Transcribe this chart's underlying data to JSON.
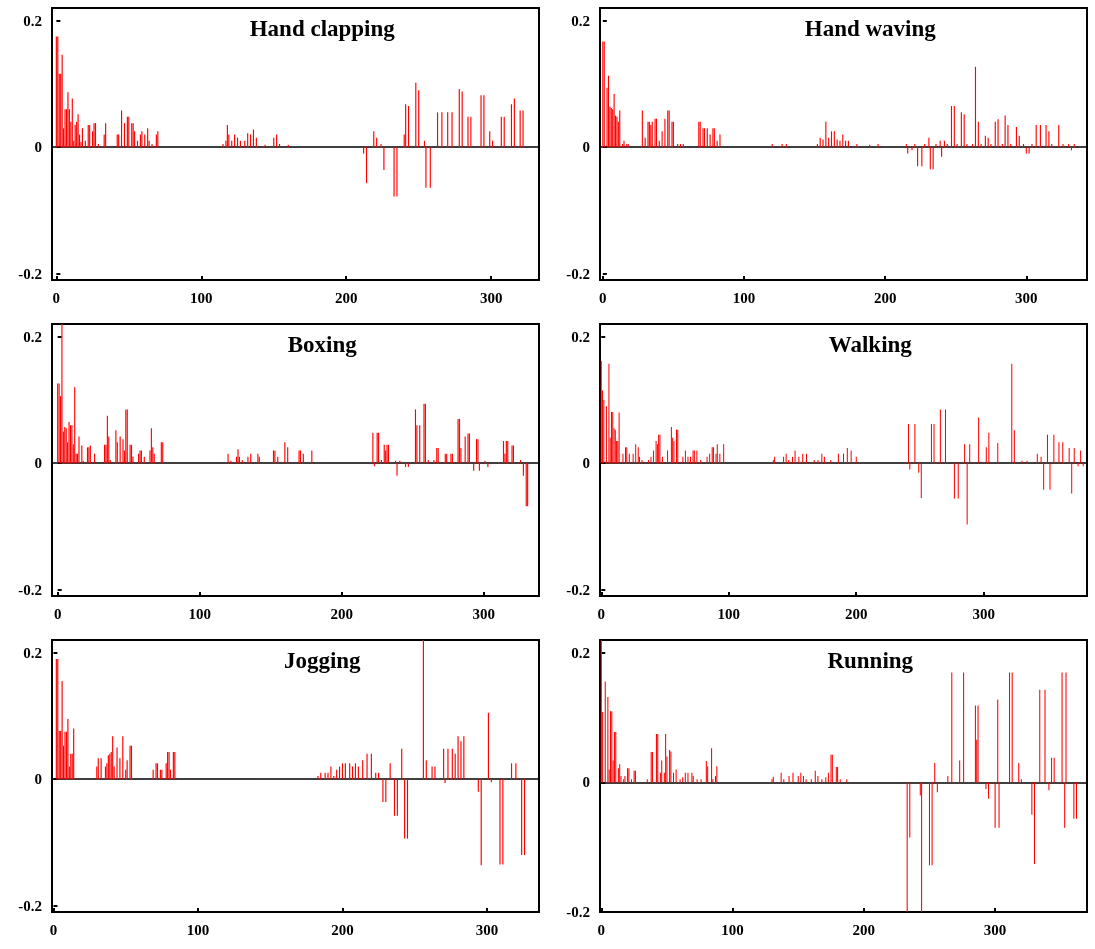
{
  "chart_data": [
    {
      "type": "bar",
      "title": "Hand clapping",
      "color": "#ff0000",
      "xlim": [
        -3,
        333
      ],
      "xticks": [
        0,
        100,
        200,
        300
      ],
      "ylim": [
        -0.21,
        0.22
      ],
      "yticks": [
        -0.2,
        0,
        0.2
      ],
      "x": [
        0,
        1,
        2,
        3,
        4,
        5,
        6,
        7,
        8,
        9,
        10,
        11,
        12,
        13,
        14,
        15,
        16,
        17,
        18,
        20,
        22,
        23,
        25,
        26,
        27,
        29,
        33,
        34,
        42,
        43,
        45,
        47,
        49,
        50,
        52,
        53,
        54,
        56,
        58,
        59,
        61,
        63,
        64,
        66,
        69,
        70,
        115,
        117,
        118,
        119,
        121,
        123,
        125,
        127,
        130,
        132,
        134,
        136,
        138,
        144,
        150,
        152,
        154,
        160,
        212,
        214,
        219,
        221,
        224,
        226,
        233,
        235,
        240,
        241,
        243,
        248,
        250,
        254,
        255,
        258,
        263,
        266,
        270,
        273,
        278,
        280,
        284,
        286,
        293,
        295,
        299,
        301,
        307,
        309,
        314,
        316,
        320,
        322
      ],
      "values": [
        0.175,
        0.175,
        0.116,
        0.116,
        0.146,
        0.03,
        0.06,
        0.06,
        0.087,
        0.06,
        0.04,
        0.077,
        0.01,
        0.035,
        0.04,
        0.052,
        0.02,
        0.008,
        0.03,
        0.01,
        0.035,
        0.035,
        0.025,
        0.038,
        0.038,
        0.005,
        0.02,
        0.038,
        0.02,
        0.02,
        0.058,
        0.038,
        0.048,
        0.048,
        0.038,
        0.038,
        0.025,
        0.01,
        0.02,
        0.025,
        0.02,
        0.03,
        0.01,
        0.005,
        0.02,
        0.025,
        0.005,
        0.01,
        0.035,
        0.02,
        0.01,
        0.02,
        0.015,
        0.01,
        0.01,
        0.022,
        0.02,
        0.028,
        0.015,
        0.004,
        0.015,
        0.02,
        0.005,
        0.004,
        -0.01,
        -0.057,
        0.025,
        0.015,
        0.005,
        -0.036,
        -0.078,
        -0.078,
        0.02,
        0.068,
        0.065,
        0.102,
        0.09,
        0.01,
        -0.064,
        -0.064,
        0.055,
        0.055,
        0.055,
        0.055,
        0.092,
        0.088,
        0.048,
        0.048,
        0.082,
        0.082,
        0.025,
        0.01,
        0.048,
        0.048,
        0.068,
        0.077,
        0.058,
        0.058
      ]
    },
    {
      "type": "bar",
      "title": "Hand waving",
      "color": "#ff0000",
      "xlim": [
        -2,
        343
      ],
      "xticks": [
        0,
        100,
        200,
        300
      ],
      "ylim": [
        -0.21,
        0.22
      ],
      "yticks": [
        -0.2,
        0,
        0.2
      ],
      "x": [
        0,
        1,
        3,
        4,
        5,
        6,
        7,
        8,
        9,
        10,
        11,
        12,
        14,
        15,
        17,
        18,
        28,
        30,
        32,
        33,
        34,
        35,
        37,
        38,
        40,
        42,
        44,
        46,
        47,
        49,
        50,
        53,
        55,
        57,
        68,
        69,
        71,
        72,
        74,
        76,
        78,
        79,
        81,
        83,
        120,
        127,
        130,
        152,
        154,
        156,
        158,
        160,
        162,
        164,
        166,
        168,
        170,
        172,
        174,
        180,
        189,
        195,
        215,
        216,
        219,
        221,
        223,
        226,
        228,
        231,
        232,
        234,
        236,
        239,
        240,
        242,
        244,
        247,
        249,
        251,
        254,
        256,
        258,
        262,
        264,
        266,
        268,
        271,
        273,
        275,
        278,
        280,
        283,
        285,
        287,
        289,
        293,
        295,
        298,
        300,
        302,
        304,
        307,
        310,
        314,
        316,
        318,
        323,
        326,
        330,
        332,
        334
      ],
      "values": [
        0.167,
        0.167,
        0.094,
        0.113,
        0.064,
        0.062,
        0.06,
        0.084,
        0.05,
        0.048,
        0.04,
        0.058,
        0.005,
        0.01,
        0.005,
        0.005,
        0.058,
        0.015,
        0.04,
        0.04,
        0.035,
        0.04,
        0.045,
        0.045,
        0.01,
        0.025,
        0.045,
        0.058,
        0.058,
        0.04,
        0.04,
        0.005,
        0.005,
        0.005,
        0.04,
        0.04,
        0.03,
        0.03,
        0.03,
        0.02,
        0.03,
        0.03,
        0.01,
        0.02,
        0.005,
        0.005,
        0.005,
        0.005,
        0.015,
        0.012,
        0.04,
        0.015,
        0.025,
        0.025,
        0.012,
        0.01,
        0.02,
        0.01,
        0.01,
        0.005,
        0.004,
        0.005,
        0.005,
        -0.01,
        -0.005,
        0.005,
        -0.03,
        -0.03,
        0.005,
        0.015,
        -0.035,
        -0.035,
        0.005,
        0.01,
        -0.015,
        0.01,
        0.005,
        0.065,
        0.065,
        0.005,
        0.055,
        0.052,
        0.005,
        0.005,
        0.127,
        0.04,
        0.005,
        0.018,
        0.015,
        0.005,
        0.04,
        0.044,
        0.005,
        0.05,
        0.035,
        0.005,
        0.032,
        0.018,
        0.005,
        -0.01,
        -0.01,
        0.005,
        0.035,
        0.035,
        0.035,
        0.025,
        0.005,
        0.035,
        0.005,
        0.005,
        -0.005,
        0.005
      ]
    },
    {
      "type": "bar",
      "title": "Boxing",
      "color": "#ff0000",
      "xlim": [
        -4,
        339
      ],
      "xticks": [
        0,
        100,
        200,
        300
      ],
      "ylim": [
        -0.21,
        0.22
      ],
      "yticks": [
        -0.2,
        0,
        0.2
      ],
      "x": [
        0,
        1,
        2,
        3,
        4,
        5,
        6,
        7,
        8,
        9,
        10,
        11,
        12,
        13,
        14,
        15,
        17,
        18,
        21,
        22,
        23,
        26,
        33,
        34,
        35,
        36,
        37,
        41,
        42,
        44,
        46,
        47,
        48,
        49,
        51,
        52,
        53,
        57,
        58,
        59,
        61,
        65,
        66,
        67,
        68,
        73,
        74,
        120,
        122,
        126,
        127,
        128,
        130,
        134,
        136,
        141,
        142,
        152,
        153,
        155,
        160,
        162,
        170,
        171,
        173,
        179,
        222,
        223,
        225,
        226,
        228,
        230,
        231,
        232,
        233,
        238,
        239,
        241,
        245,
        247,
        252,
        253,
        255,
        258,
        259,
        261,
        265,
        267,
        268,
        273,
        274,
        277,
        278,
        282,
        283,
        284,
        287,
        289,
        290,
        293,
        295,
        296,
        297,
        301,
        303,
        314,
        315,
        316,
        317,
        320,
        321,
        326,
        328,
        330,
        331
      ],
      "values": [
        0.126,
        0.126,
        0.106,
        0.22,
        0.05,
        0.057,
        0.055,
        0.033,
        0.065,
        0.06,
        0.06,
        0.03,
        0.12,
        0.015,
        0.015,
        0.042,
        0.028,
        0.004,
        0.025,
        0.025,
        0.028,
        0.015,
        0.029,
        0.029,
        0.075,
        0.042,
        0.005,
        0.052,
        0.033,
        0.042,
        0.038,
        0.02,
        0.085,
        0.085,
        0.029,
        0.029,
        0.01,
        0.015,
        0.02,
        0.02,
        0.01,
        0.02,
        0.055,
        0.025,
        0.015,
        0.033,
        0.033,
        0.015,
        0.004,
        0.01,
        0.022,
        0.01,
        0.005,
        0.01,
        0.015,
        0.015,
        0.01,
        0.02,
        0.02,
        0.01,
        0.033,
        0.025,
        0.02,
        0.02,
        0.015,
        0.02,
        0.048,
        -0.005,
        0.048,
        0.048,
        0.005,
        0.029,
        0.02,
        0.029,
        0.029,
        0.004,
        -0.02,
        0.004,
        -0.006,
        -0.006,
        0.085,
        0.06,
        0.06,
        0.094,
        0.094,
        0.005,
        0.005,
        0.024,
        0.024,
        0.015,
        0.015,
        0.015,
        0.015,
        0.07,
        0.07,
        0.024,
        0.042,
        0.047,
        0.047,
        -0.012,
        0.038,
        0.038,
        -0.012,
        0.004,
        -0.006,
        0.035,
        0.015,
        0.035,
        0.035,
        0.028,
        0.028,
        0.005,
        -0.02,
        -0.068,
        -0.068
      ]
    },
    {
      "type": "bar",
      "title": "Walking",
      "color": "#ff0000",
      "xlim": [
        -1,
        381
      ],
      "xticks": [
        0,
        100,
        200,
        300
      ],
      "ylim": [
        -0.21,
        0.22
      ],
      "yticks": [
        -0.2,
        0,
        0.2
      ],
      "x": [
        0,
        1,
        2,
        4,
        6,
        7,
        8,
        9,
        10,
        11,
        12,
        13,
        14,
        17,
        19,
        20,
        22,
        25,
        27,
        29,
        30,
        32,
        37,
        39,
        41,
        43,
        44,
        45,
        46,
        48,
        52,
        55,
        56,
        57,
        59,
        60,
        64,
        66,
        68,
        70,
        72,
        73,
        75,
        78,
        83,
        85,
        87,
        88,
        90,
        91,
        93,
        96,
        135,
        136,
        143,
        145,
        147,
        150,
        152,
        155,
        158,
        161,
        167,
        170,
        173,
        175,
        180,
        186,
        190,
        193,
        196,
        200,
        241,
        242,
        246,
        249,
        251,
        259,
        261,
        266,
        270,
        277,
        280,
        285,
        287,
        289,
        296,
        302,
        304,
        311,
        322,
        324,
        330,
        334,
        342,
        345,
        347,
        350,
        352,
        355,
        359,
        362,
        367,
        369,
        371,
        374,
        376,
        378
      ],
      "values": [
        0.162,
        0.115,
        0.1,
        0.09,
        0.157,
        0.04,
        0.081,
        0.081,
        0.055,
        0.053,
        0.035,
        0.035,
        0.08,
        0.015,
        0.025,
        0.025,
        0.015,
        0.015,
        0.03,
        0.025,
        0.01,
        0.005,
        0.005,
        0.01,
        0.02,
        0.035,
        0.03,
        0.045,
        0.045,
        0.01,
        0.02,
        0.057,
        0.04,
        0.035,
        0.053,
        0.053,
        0.01,
        0.02,
        0.01,
        0.01,
        0.02,
        0.02,
        0.02,
        0.005,
        0.01,
        0.015,
        0.025,
        0.025,
        0.015,
        0.03,
        0.015,
        0.03,
        0.005,
        0.01,
        0.01,
        0.015,
        0.005,
        0.01,
        0.02,
        0.01,
        0.015,
        0.015,
        0.005,
        0.005,
        0.015,
        0.01,
        0.005,
        0.015,
        0.015,
        0.024,
        0.02,
        0.01,
        0.062,
        -0.01,
        0.062,
        -0.015,
        -0.055,
        0.062,
        0.062,
        0.085,
        0.085,
        -0.056,
        -0.056,
        0.03,
        -0.097,
        0.03,
        0.072,
        0.025,
        0.048,
        0.032,
        0.157,
        0.052,
        0.004,
        0.004,
        0.015,
        0.01,
        -0.042,
        0.045,
        -0.042,
        0.045,
        0.033,
        0.033,
        0.024,
        -0.048,
        0.024,
        -0.005,
        0.02,
        -0.005
      ]
    },
    {
      "type": "bar",
      "title": "Jogging",
      "color": "#ff0000",
      "xlim": [
        -1,
        336
      ],
      "xticks": [
        0,
        100,
        200,
        300
      ],
      "ylim": [
        -0.21,
        0.22
      ],
      "yticks": [
        -0.2,
        0,
        0.2
      ],
      "x": [
        2,
        3,
        4,
        5,
        6,
        7,
        8,
        9,
        10,
        11,
        12,
        13,
        14,
        30,
        31,
        33,
        36,
        37,
        38,
        39,
        40,
        41,
        42,
        44,
        46,
        48,
        50,
        51,
        53,
        54,
        69,
        71,
        72,
        74,
        75,
        78,
        79,
        80,
        81,
        83,
        84,
        183,
        185,
        188,
        190,
        192,
        194,
        196,
        198,
        200,
        202,
        205,
        207,
        209,
        211,
        214,
        217,
        220,
        223,
        225,
        228,
        230,
        233,
        236,
        238,
        241,
        243,
        245,
        256,
        258,
        262,
        264,
        270,
        271,
        273,
        276,
        278,
        280,
        282,
        284,
        294,
        296,
        301,
        303,
        309,
        311,
        317,
        320,
        324,
        326
      ],
      "values": [
        0.19,
        0.19,
        0.076,
        0.076,
        0.155,
        0.053,
        0.075,
        0.075,
        0.095,
        0.02,
        0.04,
        0.04,
        0.08,
        0.02,
        0.033,
        0.033,
        0.02,
        0.025,
        0.038,
        0.04,
        0.043,
        0.068,
        0.02,
        0.05,
        0.033,
        0.068,
        0.015,
        0.03,
        0.053,
        0.053,
        0.015,
        0.025,
        0.025,
        0.015,
        0.015,
        0.025,
        0.043,
        0.043,
        0.015,
        0.043,
        0.043,
        0.005,
        0.01,
        0.01,
        0.01,
        0.02,
        0.005,
        0.015,
        0.02,
        0.025,
        0.025,
        0.025,
        0.02,
        0.025,
        0.02,
        0.03,
        0.04,
        0.04,
        0.01,
        0.01,
        -0.036,
        -0.036,
        0.025,
        -0.058,
        -0.058,
        0.048,
        -0.094,
        -0.094,
        0.22,
        0.03,
        0.02,
        0.02,
        0.048,
        -0.006,
        0.048,
        0.048,
        0.04,
        0.068,
        0.06,
        0.068,
        -0.02,
        -0.136,
        0.105,
        -0.005,
        -0.135,
        -0.135,
        0.025,
        0.025,
        -0.12,
        -0.12
      ]
    },
    {
      "type": "bar",
      "title": "Running",
      "color": "#ff0000",
      "xlim": [
        -1,
        370
      ],
      "xticks": [
        0,
        100,
        200,
        300
      ],
      "ylim": [
        -0.2,
        0.22
      ],
      "yticks": [
        -0.2,
        0,
        0.2
      ],
      "x": [
        0,
        1,
        3,
        5,
        6,
        7,
        8,
        9,
        10,
        11,
        13,
        14,
        15,
        17,
        18,
        20,
        21,
        23,
        25,
        26,
        35,
        38,
        39,
        42,
        43,
        45,
        46,
        48,
        49,
        50,
        52,
        53,
        55,
        57,
        60,
        62,
        64,
        66,
        69,
        70,
        73,
        76,
        80,
        81,
        84,
        85,
        87,
        88,
        130,
        131,
        137,
        139,
        143,
        146,
        150,
        152,
        154,
        156,
        160,
        163,
        165,
        168,
        171,
        173,
        175,
        176,
        179,
        180,
        182,
        187,
        233,
        235,
        243,
        244,
        250,
        252,
        254,
        256,
        264,
        267,
        273,
        276,
        285,
        286,
        287,
        293,
        295,
        300,
        302,
        303,
        311,
        313,
        318,
        320,
        328,
        330,
        334,
        338,
        341,
        343,
        345,
        351,
        353,
        354,
        360,
        362
      ],
      "values": [
        0.22,
        0.109,
        0.156,
        0.132,
        0.02,
        0.11,
        0.11,
        0.034,
        0.078,
        0.078,
        0.022,
        0.028,
        0.01,
        0.005,
        0.01,
        0.022,
        0.022,
        0.005,
        0.018,
        0.018,
        0.005,
        0.047,
        0.047,
        0.075,
        0.075,
        0.015,
        0.034,
        0.015,
        0.075,
        0.04,
        0.05,
        0.048,
        0.015,
        0.02,
        0.005,
        0.008,
        0.015,
        0.015,
        0.015,
        0.01,
        0.005,
        0.005,
        0.033,
        0.025,
        0.053,
        0.005,
        0.01,
        0.025,
        0.005,
        0.009,
        0.015,
        0.005,
        0.01,
        0.015,
        0.01,
        0.015,
        0.01,
        0.005,
        0.005,
        0.018,
        0.01,
        0.005,
        0.008,
        0.015,
        0.043,
        0.043,
        0.024,
        0.024,
        0.005,
        0.005,
        -0.2,
        -0.085,
        -0.02,
        -0.2,
        -0.128,
        -0.128,
        0.03,
        -0.015,
        0.01,
        0.17,
        0.034,
        0.17,
        0.119,
        0.066,
        0.119,
        -0.01,
        -0.025,
        -0.07,
        0.128,
        -0.07,
        0.17,
        0.17,
        0.03,
        0.005,
        -0.05,
        -0.126,
        0.143,
        0.143,
        -0.012,
        0.038,
        0.038,
        0.17,
        -0.07,
        0.17,
        -0.056,
        -0.056
      ]
    }
  ]
}
